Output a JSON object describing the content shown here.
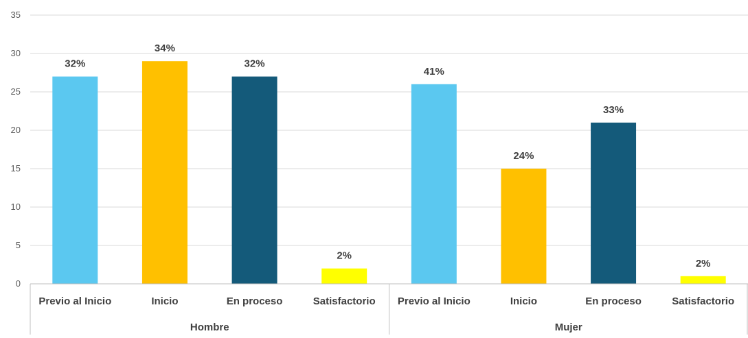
{
  "chart_data": {
    "type": "bar",
    "title": "",
    "xlabel": "",
    "ylabel": "",
    "ylim": [
      0,
      35
    ],
    "yticks": [
      0,
      5,
      10,
      15,
      20,
      25,
      30,
      35
    ],
    "grid": true,
    "groups": [
      {
        "name": "Hombre",
        "bars": [
          {
            "category": "Previo al Inicio",
            "value": 27,
            "label": "32%",
            "color": "#5BC8F0"
          },
          {
            "category": "Inicio",
            "value": 29,
            "label": "34%",
            "color": "#FFC000"
          },
          {
            "category": "En proceso",
            "value": 27,
            "label": "32%",
            "color": "#145A7A"
          },
          {
            "category": "Satisfactorio",
            "value": 2,
            "label": "2%",
            "color": "#FFFF00"
          }
        ]
      },
      {
        "name": "Mujer",
        "bars": [
          {
            "category": "Previo al Inicio",
            "value": 26,
            "label": "41%",
            "color": "#5BC8F0"
          },
          {
            "category": "Inicio",
            "value": 15,
            "label": "24%",
            "color": "#FFC000"
          },
          {
            "category": "En proceso",
            "value": 21,
            "label": "33%",
            "color": "#145A7A"
          },
          {
            "category": "Satisfactorio",
            "value": 1,
            "label": "2%",
            "color": "#FFFF00"
          }
        ]
      }
    ]
  }
}
